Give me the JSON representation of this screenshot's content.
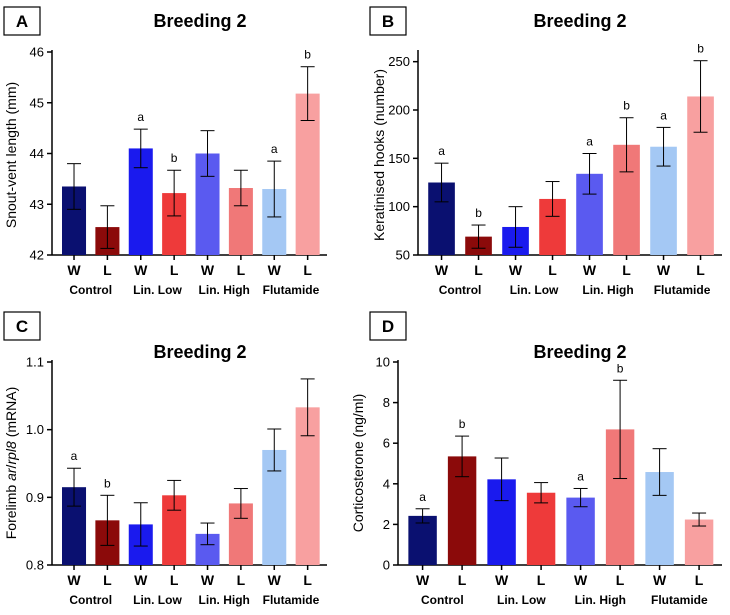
{
  "chart_data": [
    {
      "type": "bar",
      "panel": "A",
      "title": "Breeding 2",
      "ylabel": "Snout-vent length (mm)",
      "ylim": [
        42,
        46
      ],
      "yticks": [
        42,
        43,
        44,
        45,
        46
      ],
      "categories": [
        "W",
        "L",
        "W",
        "L",
        "W",
        "L",
        "W",
        "L"
      ],
      "groups": [
        "Control",
        "Lin. Low",
        "Lin. High",
        "Flutamide"
      ],
      "values": [
        43.35,
        42.55,
        44.1,
        43.22,
        44.0,
        43.32,
        43.3,
        45.18
      ],
      "errors": [
        0.45,
        0.42,
        0.38,
        0.45,
        0.45,
        0.35,
        0.55,
        0.53
      ],
      "significance": [
        "",
        "",
        "a",
        "b",
        "",
        "",
        "a",
        "b"
      ],
      "colors": [
        "#0a1070",
        "#8b0a0a",
        "#1a1aee",
        "#ee3a3a",
        "#5a5af0",
        "#f07878",
        "#a4c8f4",
        "#f8a0a0"
      ],
      "grid": false
    },
    {
      "type": "bar",
      "panel": "B",
      "title": "Breeding 2",
      "ylabel": "Keratinised hooks (number)",
      "ylim": [
        50,
        260
      ],
      "yticks": [
        50,
        100,
        150,
        200,
        250
      ],
      "categories": [
        "W",
        "L",
        "W",
        "L",
        "W",
        "L",
        "W",
        "L"
      ],
      "groups": [
        "Control",
        "Lin. Low",
        "Lin. High",
        "Flutamide"
      ],
      "values": [
        125,
        69,
        79,
        108,
        134,
        164,
        162,
        214
      ],
      "errors": [
        20,
        12,
        21,
        18,
        21,
        28,
        20,
        37
      ],
      "significance": [
        "a",
        "b",
        "",
        "",
        "a",
        "b",
        "a",
        "b"
      ],
      "colors": [
        "#0a1070",
        "#8b0a0a",
        "#1a1aee",
        "#ee3a3a",
        "#5a5af0",
        "#f07878",
        "#a4c8f4",
        "#f8a0a0"
      ],
      "grid": false
    },
    {
      "type": "bar",
      "panel": "C",
      "title": "Breeding 2",
      "ylabel_parts": [
        "Forelimb ",
        "ar",
        "/",
        "rpl8",
        " (mRNA)"
      ],
      "ylim": [
        0.8,
        1.1
      ],
      "yticks": [
        "0.8",
        "0.9",
        "1.0",
        "1.1"
      ],
      "categories": [
        "W",
        "L",
        "W",
        "L",
        "W",
        "L",
        "W",
        "L"
      ],
      "groups": [
        "Control",
        "Lin. Low",
        "Lin. High",
        "Flutamide"
      ],
      "values": [
        0.915,
        0.866,
        0.86,
        0.903,
        0.846,
        0.891,
        0.97,
        1.033
      ],
      "errors": [
        0.028,
        0.037,
        0.032,
        0.022,
        0.016,
        0.022,
        0.031,
        0.042
      ],
      "significance": [
        "a",
        "b",
        "",
        "",
        "",
        "",
        "",
        ""
      ],
      "colors": [
        "#0a1070",
        "#8b0a0a",
        "#1a1aee",
        "#ee3a3a",
        "#5a5af0",
        "#f07878",
        "#a4c8f4",
        "#f8a0a0"
      ],
      "grid": false
    },
    {
      "type": "bar",
      "panel": "D",
      "title": "Breeding 2",
      "ylabel": "Corticosterone (ng/ml)",
      "ylim": [
        0,
        10
      ],
      "yticks": [
        0,
        2,
        4,
        6,
        8,
        10
      ],
      "categories": [
        "W",
        "L",
        "W",
        "L",
        "W",
        "L",
        "W",
        "L"
      ],
      "groups": [
        "Control",
        "Lin. Low",
        "Lin. High",
        "Flutamide"
      ],
      "values": [
        2.42,
        5.35,
        4.22,
        3.56,
        3.32,
        6.68,
        4.58,
        2.24
      ],
      "errors": [
        0.35,
        1.0,
        1.05,
        0.5,
        0.45,
        2.42,
        1.15,
        0.32
      ],
      "significance": [
        "a",
        "b",
        "",
        "",
        "a",
        "b",
        "",
        ""
      ],
      "colors": [
        "#0a1070",
        "#8b0a0a",
        "#1a1aee",
        "#ee3a3a",
        "#5a5af0",
        "#f07878",
        "#a4c8f4",
        "#f8a0a0"
      ],
      "grid": false
    }
  ]
}
